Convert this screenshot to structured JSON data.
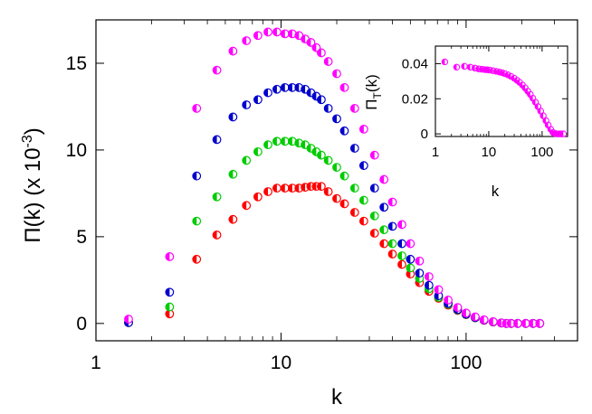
{
  "chart_data": [
    {
      "type": "scatter",
      "title": "",
      "xlabel": "k",
      "ylabel_main": "Π(k) (x 10",
      "ylabel_sup": "-3",
      "ylabel_close": ")",
      "xscale": "log",
      "xlim": [
        1,
        400
      ],
      "ylim": [
        -1,
        17.5
      ],
      "xticks": [
        1,
        10,
        100
      ],
      "xtick_labels": [
        "1",
        "10",
        "100"
      ],
      "yticks": [
        0,
        5,
        10,
        15
      ],
      "ytick_labels": [
        "0",
        "5",
        "10",
        "15"
      ],
      "grid": false,
      "legend": "none",
      "marker": "half-filled circle",
      "series": [
        {
          "color": "#ff0000",
          "x": [
            1.5,
            2.5,
            3.5,
            4.5,
            5.5,
            6.5,
            7.5,
            8.5,
            9.5,
            10.5,
            11.5,
            12.5,
            13.5,
            14.5,
            15.5,
            16.5,
            18,
            20,
            22,
            25,
            28,
            32,
            36,
            40,
            45,
            50,
            56,
            63,
            71,
            80,
            90,
            100,
            112,
            125,
            140,
            155,
            165,
            175,
            190,
            210,
            230,
            250
          ],
          "y": [
            0.05,
            0.55,
            3.7,
            5.1,
            6.0,
            6.8,
            7.3,
            7.6,
            7.8,
            7.8,
            7.8,
            7.8,
            7.85,
            7.9,
            7.9,
            7.9,
            7.6,
            7.2,
            6.9,
            6.4,
            5.9,
            5.2,
            4.6,
            4.0,
            3.4,
            2.85,
            2.35,
            1.85,
            1.45,
            1.05,
            0.75,
            0.5,
            0.32,
            0.18,
            0.08,
            0.03,
            0,
            0,
            0,
            0,
            0,
            0
          ]
        },
        {
          "color": "#00cc00",
          "x": [
            1.5,
            2.5,
            3.5,
            4.5,
            5.5,
            6.5,
            7.5,
            8.5,
            9.5,
            10.5,
            11.5,
            12.5,
            13.5,
            14.5,
            15.5,
            16.5,
            18,
            20,
            22,
            25,
            28,
            32,
            36,
            40,
            45,
            50,
            56,
            63,
            71,
            80,
            90,
            100,
            112,
            125,
            140,
            155,
            165,
            175,
            190,
            210,
            230,
            250
          ],
          "y": [
            0.05,
            0.95,
            5.9,
            7.3,
            8.6,
            9.4,
            9.9,
            10.3,
            10.5,
            10.5,
            10.5,
            10.4,
            10.3,
            10.1,
            9.9,
            9.7,
            9.4,
            9.0,
            8.5,
            7.8,
            7.1,
            6.2,
            5.4,
            4.6,
            3.9,
            3.2,
            2.6,
            2.0,
            1.5,
            1.1,
            0.78,
            0.52,
            0.33,
            0.19,
            0.09,
            0.03,
            0,
            0,
            0,
            0,
            0,
            0
          ]
        },
        {
          "color": "#0000cc",
          "x": [
            1.5,
            2.5,
            3.5,
            4.5,
            5.5,
            6.5,
            7.5,
            8.5,
            9.5,
            10.5,
            11.5,
            12.5,
            13.5,
            14.5,
            15.5,
            16.5,
            18,
            20,
            22,
            25,
            28,
            32,
            36,
            40,
            45,
            50,
            56,
            63,
            71,
            80,
            90,
            100,
            112,
            125,
            140,
            155,
            165,
            175,
            190,
            210,
            230,
            250
          ],
          "y": [
            0.05,
            1.8,
            8.5,
            10.6,
            11.9,
            12.6,
            12.9,
            13.3,
            13.5,
            13.6,
            13.6,
            13.6,
            13.5,
            13.3,
            13.1,
            12.9,
            12.4,
            11.8,
            11.1,
            10.1,
            9.1,
            7.8,
            6.7,
            5.6,
            4.6,
            3.7,
            2.9,
            2.2,
            1.6,
            1.15,
            0.8,
            0.53,
            0.34,
            0.19,
            0.09,
            0.03,
            0,
            0,
            0,
            0,
            0,
            0
          ]
        },
        {
          "color": "#ff00ff",
          "x": [
            1.5,
            2.5,
            3.5,
            4.5,
            5.5,
            6.5,
            7.5,
            8.5,
            9.5,
            10.5,
            11.5,
            12.5,
            13.5,
            14.5,
            15.5,
            16.5,
            18,
            20,
            22,
            25,
            28,
            32,
            36,
            40,
            45,
            50,
            56,
            63,
            71,
            80,
            90,
            100,
            112,
            125,
            140,
            155,
            165,
            175,
            190,
            210,
            230,
            250
          ],
          "y": [
            0.25,
            3.85,
            12.4,
            14.6,
            15.7,
            16.3,
            16.6,
            16.8,
            16.8,
            16.7,
            16.7,
            16.6,
            16.4,
            16.2,
            15.9,
            15.6,
            15.1,
            14.4,
            13.6,
            12.4,
            11.2,
            9.7,
            8.3,
            7.0,
            5.7,
            4.6,
            3.6,
            2.7,
            1.95,
            1.35,
            0.92,
            0.6,
            0.38,
            0.21,
            0.1,
            0.03,
            0,
            0,
            0,
            0,
            0,
            0
          ]
        }
      ]
    },
    {
      "type": "scatter",
      "title": "",
      "xlabel": "k",
      "ylabel_main": "Π",
      "ylabel_sub": "T",
      "ylabel_close": "(k)",
      "xscale": "log",
      "xlim": [
        1,
        300
      ],
      "ylim": [
        -0.0015,
        0.05
      ],
      "xticks": [
        1,
        10,
        100
      ],
      "xtick_labels": [
        "1",
        "10",
        "100"
      ],
      "yticks": [
        0,
        0.02,
        0.04
      ],
      "ytick_labels": [
        "0",
        "0.02",
        "0.04"
      ],
      "grid": false,
      "legend": "none",
      "marker": "half-filled circle",
      "series": [
        {
          "color": "#ff00ff",
          "x": [
            1.5,
            2.5,
            3.5,
            4.5,
            5.5,
            6.5,
            7.5,
            8.5,
            9.5,
            10.5,
            12,
            14,
            16,
            18,
            20,
            23,
            26,
            30,
            34,
            38,
            43,
            48,
            54,
            60,
            67,
            75,
            84,
            94,
            105,
            118,
            130,
            145,
            160,
            175,
            190,
            210,
            230,
            250
          ],
          "y": [
            0.041,
            0.038,
            0.0385,
            0.038,
            0.0375,
            0.037,
            0.0368,
            0.0366,
            0.0365,
            0.0363,
            0.036,
            0.0356,
            0.0352,
            0.0348,
            0.0343,
            0.0336,
            0.0328,
            0.0317,
            0.0305,
            0.0293,
            0.0278,
            0.0262,
            0.0243,
            0.0225,
            0.0203,
            0.018,
            0.0155,
            0.013,
            0.0103,
            0.0075,
            0.005,
            0.0026,
            0.0008,
            0.0002,
            0,
            0,
            0,
            0
          ]
        }
      ]
    }
  ]
}
